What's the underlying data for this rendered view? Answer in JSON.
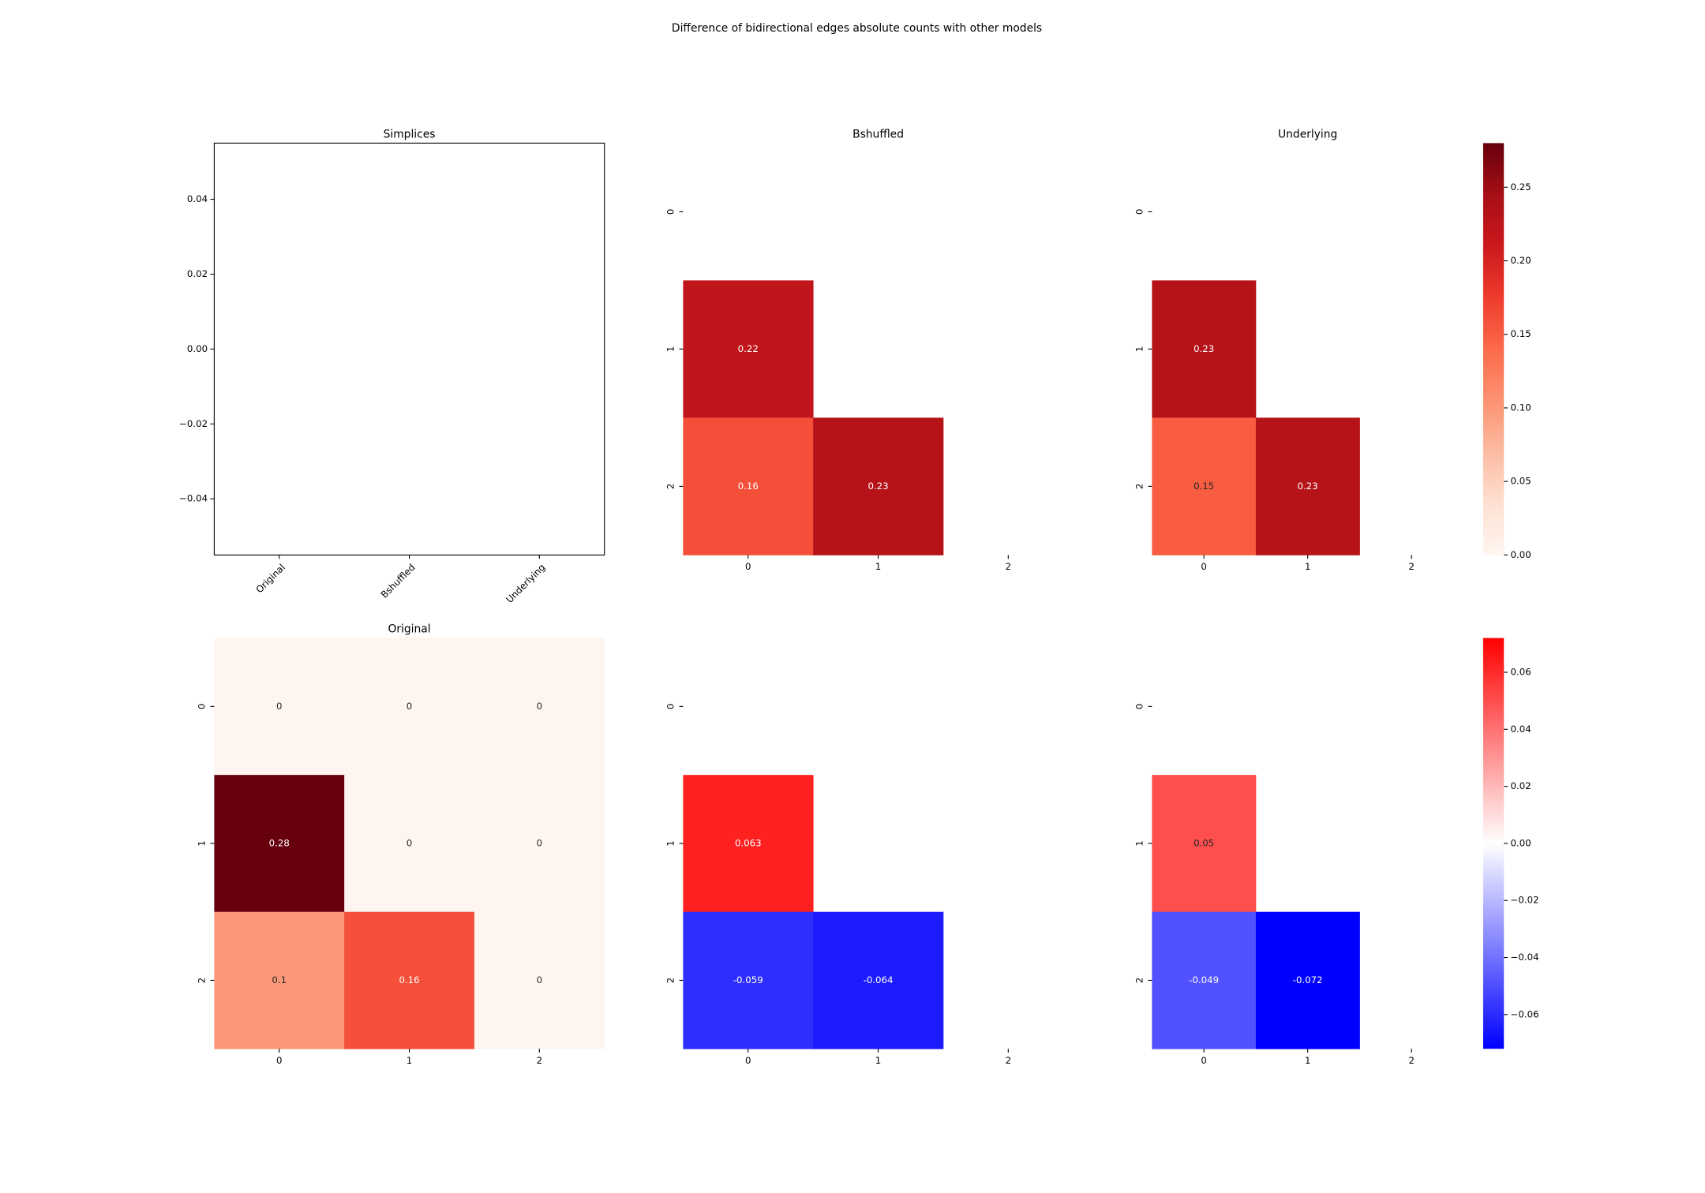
{
  "title": "Difference of bidirectional edges absolute counts with other models",
  "chart_data": [
    {
      "type": "line",
      "title": "Simplices",
      "categories": [
        "Original",
        "Bshuffled",
        "Underlying"
      ],
      "ylim": [
        -0.055,
        0.055
      ],
      "yticks": [
        {
          "value": -0.04,
          "label": "−0.04"
        },
        {
          "value": -0.02,
          "label": "−0.02"
        },
        {
          "value": 0,
          "label": "0.00"
        },
        0.02,
        0.04
      ]
    },
    {
      "type": "heatmap",
      "title": "Bshuffled",
      "x_categories": [
        0,
        1,
        2
      ],
      "y_categories": [
        0,
        1,
        2
      ],
      "values": [
        [
          null,
          null,
          null
        ],
        [
          0.22,
          null,
          null
        ],
        [
          0.16,
          0.23,
          null
        ]
      ],
      "clim": [
        0,
        0.28
      ],
      "colors": [
        "#fff5f0",
        "#fee0d2",
        "#fcbba1",
        "#fc9272",
        "#fb6a4a",
        "#ef3b2c",
        "#cb181d",
        "#a50f15",
        "#67000d"
      ]
    },
    {
      "type": "heatmap",
      "title": "Underlying",
      "x_categories": [
        0,
        1,
        2
      ],
      "y_categories": [
        0,
        1,
        2
      ],
      "values": [
        [
          null,
          null,
          null
        ],
        [
          0.23,
          null,
          null
        ],
        [
          0.15,
          0.23,
          null
        ]
      ],
      "clim": [
        0,
        0.28
      ],
      "colors": [
        "#fff5f0",
        "#fee0d2",
        "#fcbba1",
        "#fc9272",
        "#fb6a4a",
        "#ef3b2c",
        "#cb181d",
        "#a50f15",
        "#67000d"
      ],
      "colorbar": {
        "ticks": [
          {
            "value": 0,
            "label": "0.00"
          },
          0.05,
          {
            "value": 0.1,
            "label": "0.10"
          },
          0.15,
          {
            "value": 0.2,
            "label": "0.20"
          },
          0.25
        ]
      }
    },
    {
      "type": "heatmap",
      "title": "Original",
      "x_categories": [
        0,
        1,
        2
      ],
      "y_categories": [
        0,
        1,
        2
      ],
      "values": [
        [
          0,
          0,
          0
        ],
        [
          0.28,
          0,
          0
        ],
        [
          0.1,
          0.16,
          0
        ]
      ],
      "clim": [
        0,
        0.28
      ],
      "colors": [
        "#fff5f0",
        "#fee0d2",
        "#fcbba1",
        "#fc9272",
        "#fb6a4a",
        "#ef3b2c",
        "#cb181d",
        "#a50f15",
        "#67000d"
      ]
    },
    {
      "type": "heatmap",
      "x_categories": [
        0,
        1,
        2
      ],
      "y_categories": [
        0,
        1,
        2
      ],
      "values": [
        [
          null,
          null,
          null
        ],
        [
          0.063,
          null,
          null
        ],
        [
          -0.059,
          -0.064,
          null
        ]
      ],
      "clim": [
        -0.072,
        0.072
      ],
      "colors": [
        "#0000ff",
        "#ffffff",
        "#ff0000"
      ]
    },
    {
      "type": "heatmap",
      "x_categories": [
        0,
        1,
        2
      ],
      "y_categories": [
        0,
        1,
        2
      ],
      "values": [
        [
          null,
          null,
          null
        ],
        [
          0.05,
          null,
          null
        ],
        [
          -0.049,
          -0.072,
          null
        ]
      ],
      "clim": [
        -0.072,
        0.072
      ],
      "colors": [
        "#0000ff",
        "#ffffff",
        "#ff0000"
      ],
      "colorbar": {
        "ticks": [
          {
            "value": -0.06,
            "label": "−0.06"
          },
          {
            "value": -0.04,
            "label": "−0.04"
          },
          {
            "value": -0.02,
            "label": "−0.02"
          },
          {
            "value": 0,
            "label": "0.00"
          },
          0.02,
          0.04,
          0.06
        ]
      }
    }
  ]
}
